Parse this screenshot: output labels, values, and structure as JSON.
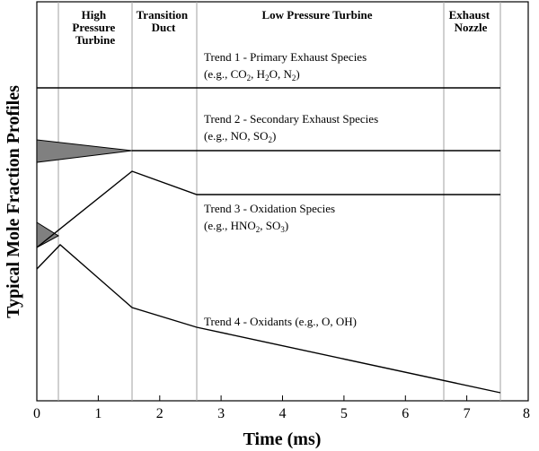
{
  "sections": {
    "hpt": [
      "High",
      "Pressure",
      "Turbine"
    ],
    "duct": [
      "Transition",
      "Duct"
    ],
    "lpt": [
      "Low Pressure Turbine"
    ],
    "nozzle": [
      "Exhaust",
      "Nozzle"
    ]
  },
  "trends": {
    "t1": {
      "label": "Trend 1 - Primary Exhaust Species",
      "examples": [
        "(e.g., CO",
        "2",
        ", H",
        "2",
        "O, N",
        "2",
        ")"
      ]
    },
    "t2": {
      "label": "Trend 2 - Secondary Exhaust Species",
      "examples": [
        "(e.g., NO, SO",
        "2",
        ")"
      ]
    },
    "t3": {
      "label": "Trend 3 - Oxidation Species",
      "examples": [
        "(e.g., HNO",
        "2",
        ", SO",
        "3",
        ")"
      ]
    },
    "t4": {
      "label": "Trend 4 - Oxidants (e.g., O, OH)"
    }
  },
  "axes": {
    "ylabel": "Typical Mole Fraction Profiles",
    "xlabel": "Time (ms)",
    "xticks": [
      "0",
      "1",
      "2",
      "3",
      "4",
      "5",
      "6",
      "7",
      "8"
    ]
  },
  "colors": {
    "line": "#000000",
    "divider": "#a0a0a0",
    "shade": "#808080"
  }
}
